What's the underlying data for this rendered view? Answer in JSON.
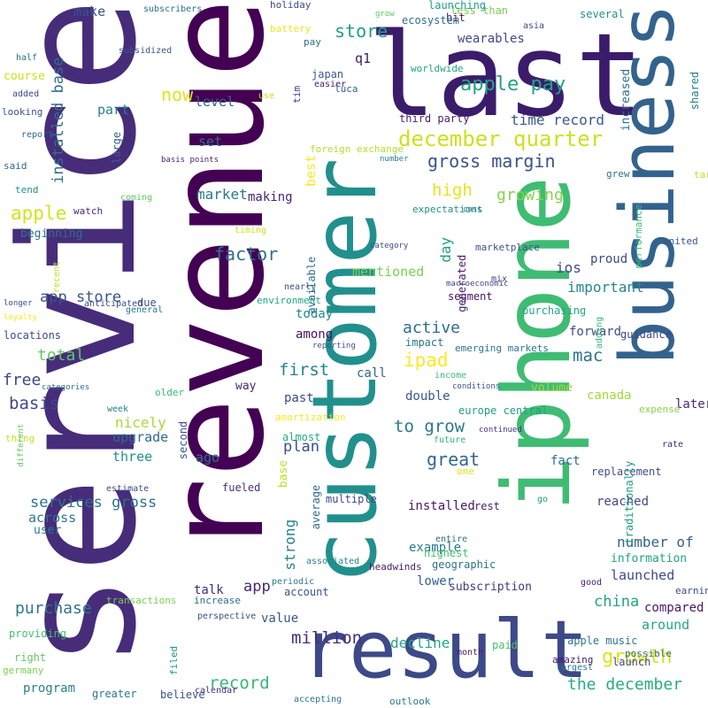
{
  "words": [
    {
      "text": "service",
      "color": "#472c7a",
      "vertical": true
    },
    {
      "text": "revenue",
      "color": "#440154",
      "vertical": true
    },
    {
      "text": "last",
      "color": "#3b1c6b",
      "vertical": false
    },
    {
      "text": "customer",
      "color": "#21908d",
      "vertical": true
    },
    {
      "text": "iphone",
      "color": "#3fbc73",
      "vertical": true
    },
    {
      "text": "business",
      "color": "#33638d",
      "vertical": true
    },
    {
      "text": "result",
      "color": "#3e4989",
      "vertical": false
    },
    {
      "text": "december quarter",
      "color": "#cde11d",
      "vertical": false
    },
    {
      "text": "gross margin",
      "color": "#3b528b",
      "vertical": false
    },
    {
      "text": "apple pay",
      "color": "#20a386",
      "vertical": false
    },
    {
      "text": "store",
      "color": "#1f9e89",
      "vertical": false
    },
    {
      "text": "wearables",
      "color": "#3e4a89",
      "vertical": false
    },
    {
      "text": "time record",
      "color": "#375a8c",
      "vertical": false
    },
    {
      "text": "installed base",
      "color": "#2e6f8e",
      "vertical": true
    },
    {
      "text": "apple",
      "color": "#d2e21b",
      "vertical": false
    },
    {
      "text": "high",
      "color": "#e7e419",
      "vertical": false
    },
    {
      "text": "growing",
      "color": "#84d44b",
      "vertical": false
    },
    {
      "text": "market",
      "color": "#2a788e",
      "vertical": false
    },
    {
      "text": "factor",
      "color": "#2d718e",
      "vertical": false
    },
    {
      "text": "day",
      "color": "#1fa088",
      "vertical": true
    },
    {
      "text": "generated",
      "color": "#481a6c",
      "vertical": true
    },
    {
      "text": "ios",
      "color": "#3e4c8a",
      "vertical": false
    },
    {
      "text": "app store",
      "color": "#3b528b",
      "vertical": false
    },
    {
      "text": "active",
      "color": "#2e6e8e",
      "vertical": false
    },
    {
      "text": "important",
      "color": "#23888e",
      "vertical": false
    },
    {
      "text": "ipad",
      "color": "#fde725",
      "vertical": false
    },
    {
      "text": "mac",
      "color": "#2c728e",
      "vertical": false
    },
    {
      "text": "total",
      "color": "#5ec962",
      "vertical": false
    },
    {
      "text": "basis",
      "color": "#3f4889",
      "vertical": false
    },
    {
      "text": "free",
      "color": "#3e4a89",
      "vertical": false
    },
    {
      "text": "first",
      "color": "#25848e",
      "vertical": false
    },
    {
      "text": "to grow",
      "color": "#2a788e",
      "vertical": false
    },
    {
      "text": "great",
      "color": "#31688e",
      "vertical": false
    },
    {
      "text": "services gross",
      "color": "#2c728e",
      "vertical": false
    },
    {
      "text": "purchase",
      "color": "#2a788e",
      "vertical": false
    },
    {
      "text": "million",
      "color": "#472d7b",
      "vertical": false
    },
    {
      "text": "growth",
      "color": "#dde318",
      "vertical": false
    },
    {
      "text": "the december",
      "color": "#25ab82",
      "vertical": false
    },
    {
      "text": "record",
      "color": "#35b779",
      "vertical": false
    },
    {
      "text": "china",
      "color": "#20a486",
      "vertical": false
    },
    {
      "text": "number of",
      "color": "#33638d",
      "vertical": false
    },
    {
      "text": "decline",
      "color": "#22a785",
      "vertical": false
    },
    {
      "text": "strong",
      "color": "#26828e",
      "vertical": true
    },
    {
      "text": "plan",
      "color": "#3d4e8a",
      "vertical": false
    },
    {
      "text": "nicely",
      "color": "#a8db34",
      "vertical": false
    },
    {
      "text": "three",
      "color": "#21918c",
      "vertical": false
    },
    {
      "text": "upgrade",
      "color": "#31688e",
      "vertical": false
    },
    {
      "text": "make",
      "color": "#3b528b",
      "vertical": false
    },
    {
      "text": "now",
      "color": "#e2e418",
      "vertical": false
    },
    {
      "text": "level",
      "color": "#33628d",
      "vertical": false
    },
    {
      "text": "set",
      "color": "#2d708e",
      "vertical": false
    },
    {
      "text": "large",
      "color": "#34618d",
      "vertical": true
    },
    {
      "text": "part",
      "color": "#26828e",
      "vertical": false
    },
    {
      "text": "best",
      "color": "#fde725",
      "vertical": true
    },
    {
      "text": "foreign exchange",
      "color": "#b5de2b",
      "vertical": false
    },
    {
      "text": "third party",
      "color": "#481c6e",
      "vertical": false
    },
    {
      "text": "q1",
      "color": "#3b1c6b",
      "vertical": false
    },
    {
      "text": "tim",
      "color": "#443983",
      "vertical": true
    },
    {
      "text": "making",
      "color": "#482374",
      "vertical": false
    },
    {
      "text": "mentioned",
      "color": "#7ad151",
      "vertical": false
    },
    {
      "text": "segment",
      "color": "#471365",
      "vertical": false
    },
    {
      "text": "purchasing",
      "color": "#22a785",
      "vertical": false
    },
    {
      "text": "forward",
      "color": "#3e4c8a",
      "vertical": false
    },
    {
      "text": "guidance",
      "color": "#414487",
      "vertical": false
    },
    {
      "text": "today",
      "color": "#238a8d",
      "vertical": false
    },
    {
      "text": "among",
      "color": "#471164",
      "vertical": false
    },
    {
      "text": "impact",
      "color": "#2b758e",
      "vertical": false
    },
    {
      "text": "emerging markets",
      "color": "#2b758e",
      "vertical": false
    },
    {
      "text": "past",
      "color": "#3e4989",
      "vertical": false
    },
    {
      "text": "double",
      "color": "#39568c",
      "vertical": false
    },
    {
      "text": "call",
      "color": "#33638d",
      "vertical": false
    },
    {
      "text": "way",
      "color": "#482878",
      "vertical": false
    },
    {
      "text": "ago",
      "color": "#2c728e",
      "vertical": false
    },
    {
      "text": "across",
      "color": "#2a768e",
      "vertical": false
    },
    {
      "text": "user",
      "color": "#287c8e",
      "vertical": false
    },
    {
      "text": "app",
      "color": "#482677",
      "vertical": false
    },
    {
      "text": "talk",
      "color": "#472c7a",
      "vertical": false
    },
    {
      "text": "value",
      "color": "#39568c",
      "vertical": false
    },
    {
      "text": "example",
      "color": "#2a788e",
      "vertical": false
    },
    {
      "text": "installed",
      "color": "#481a6c",
      "vertical": false
    },
    {
      "text": "reached",
      "color": "#3f4889",
      "vertical": false
    },
    {
      "text": "fact",
      "color": "#2d708e",
      "vertical": false
    },
    {
      "text": "replacement",
      "color": "#3e4c8a",
      "vertical": false
    },
    {
      "text": "subscription",
      "color": "#453781",
      "vertical": false
    },
    {
      "text": "lower",
      "color": "#34608d",
      "vertical": false
    },
    {
      "text": "launched",
      "color": "#3e4989",
      "vertical": false
    },
    {
      "text": "compared",
      "color": "#48186a",
      "vertical": false
    },
    {
      "text": "around",
      "color": "#22a884",
      "vertical": false
    },
    {
      "text": "launch",
      "color": "#3e4989",
      "vertical": false
    },
    {
      "text": "information",
      "color": "#20a486",
      "vertical": false
    },
    {
      "text": "apple music",
      "color": "#2a788e",
      "vertical": false
    },
    {
      "text": "program",
      "color": "#27808e",
      "vertical": false
    },
    {
      "text": "believe",
      "color": "#3b528b",
      "vertical": false
    },
    {
      "text": "greater",
      "color": "#2a788e",
      "vertical": false
    },
    {
      "text": "right",
      "color": "#5ec962",
      "vertical": false
    },
    {
      "text": "providing",
      "color": "#44bf70",
      "vertical": false
    },
    {
      "text": "transactions",
      "color": "#7ad151",
      "vertical": false
    },
    {
      "text": "increase",
      "color": "#2e6e8e",
      "vertical": false
    },
    {
      "text": "account",
      "color": "#39568c",
      "vertical": false
    },
    {
      "text": "average",
      "color": "#2f6c8e",
      "vertical": true
    },
    {
      "text": "base",
      "color": "#bddf26",
      "vertical": true
    },
    {
      "text": "available",
      "color": "#2e6e8e",
      "vertical": true
    },
    {
      "text": "multiple",
      "color": "#3f4788",
      "vertical": false
    },
    {
      "text": "geographic",
      "color": "#2c728e",
      "vertical": false
    },
    {
      "text": "highest",
      "color": "#46c06f",
      "vertical": false
    },
    {
      "text": "entire",
      "color": "#2c718e",
      "vertical": false
    },
    {
      "text": "headwinds",
      "color": "#481b6d",
      "vertical": false
    },
    {
      "text": "associated",
      "color": "#25848e",
      "vertical": false
    },
    {
      "text": "periodic",
      "color": "#2a768e",
      "vertical": false
    },
    {
      "text": "perspective",
      "color": "#3b528b",
      "vertical": false
    },
    {
      "text": "filed",
      "color": "#21918c",
      "vertical": true
    },
    {
      "text": "accepting",
      "color": "#2c728e",
      "vertical": false
    },
    {
      "text": "outlook",
      "color": "#287c8e",
      "vertical": false
    },
    {
      "text": "paid",
      "color": "#4ac16d",
      "vertical": false
    },
    {
      "text": "month",
      "color": "#481f70",
      "vertical": false
    },
    {
      "text": "amazing",
      "color": "#3b1c6b",
      "vertical": false
    },
    {
      "text": "largest",
      "color": "#2a788e",
      "vertical": false
    },
    {
      "text": "possible",
      "color": "#2c728e",
      "vertical": false
    },
    {
      "text": "earnings",
      "color": "#3e4a89",
      "vertical": false
    },
    {
      "text": "good",
      "color": "#481a6c",
      "vertical": false
    },
    {
      "text": "germany",
      "color": "#7ad151",
      "vertical": false
    },
    {
      "text": "second",
      "color": "#3b528b",
      "vertical": true
    },
    {
      "text": "calendar",
      "color": "#472d7b",
      "vertical": false
    },
    {
      "text": "estimate",
      "color": "#3e4c8a",
      "vertical": false
    },
    {
      "text": "fueled",
      "color": "#46337f",
      "vertical": false
    },
    {
      "text": "thing",
      "color": "#c2df23",
      "vertical": false
    },
    {
      "text": "different",
      "color": "#5ec962",
      "vertical": true
    },
    {
      "text": "week",
      "color": "#27808e",
      "vertical": false
    },
    {
      "text": "categories",
      "color": "#31688e",
      "vertical": false
    },
    {
      "text": "older",
      "color": "#38b977",
      "vertical": false
    },
    {
      "text": "amortization",
      "color": "#fde725",
      "vertical": false
    },
    {
      "text": "almost",
      "color": "#25ab82",
      "vertical": false
    },
    {
      "text": "europe central",
      "color": "#1f9e89",
      "vertical": false
    },
    {
      "text": "conditions",
      "color": "#3b528b",
      "vertical": false
    },
    {
      "text": "income",
      "color": "#3aba76",
      "vertical": false
    },
    {
      "text": "volume",
      "color": "#a0da39",
      "vertical": false
    },
    {
      "text": "future",
      "color": "#34b679",
      "vertical": false
    },
    {
      "text": "continued",
      "color": "#46337f",
      "vertical": false
    },
    {
      "text": "one",
      "color": "#e5e419",
      "vertical": false
    },
    {
      "text": "rest",
      "color": "#482071",
      "vertical": false
    },
    {
      "text": "go",
      "color": "#1e9c89",
      "vertical": false
    },
    {
      "text": "expense",
      "color": "#84d44b",
      "vertical": false
    },
    {
      "text": "later",
      "color": "#472a7a",
      "vertical": false
    },
    {
      "text": "rate",
      "color": "#482878",
      "vertical": false
    },
    {
      "text": "canada",
      "color": "#a2da37",
      "vertical": false
    },
    {
      "text": "traditionally",
      "color": "#1f9e89",
      "vertical": true
    },
    {
      "text": "adding",
      "color": "#3aba76",
      "vertical": true
    },
    {
      "text": "united",
      "color": "#38598c",
      "vertical": false
    },
    {
      "text": "proud",
      "color": "#3f4889",
      "vertical": false
    },
    {
      "text": "grew",
      "color": "#2d718e",
      "vertical": false
    },
    {
      "text": "performance",
      "color": "#3aba76",
      "vertical": true
    },
    {
      "text": "target",
      "color": "#bade28",
      "vertical": false
    },
    {
      "text": "shared",
      "color": "#26818e",
      "vertical": true
    },
    {
      "text": "increased",
      "color": "#2e6d8e",
      "vertical": true
    },
    {
      "text": "several",
      "color": "#21918c",
      "vertical": false
    },
    {
      "text": "less than",
      "color": "#7ad151",
      "vertical": false
    },
    {
      "text": "bit",
      "color": "#481a6c",
      "vertical": false
    },
    {
      "text": "launching",
      "color": "#1f9e89",
      "vertical": false
    },
    {
      "text": "ecosystem",
      "color": "#2e6f8e",
      "vertical": false
    },
    {
      "text": "grow",
      "color": "#5ec962",
      "vertical": false
    },
    {
      "text": "asia",
      "color": "#3e4c8a",
      "vertical": false
    },
    {
      "text": "worldwide",
      "color": "#20a386",
      "vertical": false
    },
    {
      "text": "luca",
      "color": "#33638d",
      "vertical": false
    },
    {
      "text": "japan",
      "color": "#38598c",
      "vertical": false
    },
    {
      "text": "easier",
      "color": "#481a6c",
      "vertical": false
    },
    {
      "text": "pay",
      "color": "#2d708e",
      "vertical": false
    },
    {
      "text": "battery",
      "color": "#f1e51d",
      "vertical": false
    },
    {
      "text": "holiday",
      "color": "#3e4a89",
      "vertical": false
    },
    {
      "text": "subscribers",
      "color": "#2e6e8e",
      "vertical": false
    },
    {
      "text": "subsidized",
      "color": "#3b528b",
      "vertical": false
    },
    {
      "text": "half",
      "color": "#2c728e",
      "vertical": false
    },
    {
      "text": "course",
      "color": "#cde11d",
      "vertical": false
    },
    {
      "text": "added",
      "color": "#3e4989",
      "vertical": false
    },
    {
      "text": "looking",
      "color": "#3b528b",
      "vertical": false
    },
    {
      "text": "report",
      "color": "#31688e",
      "vertical": false
    },
    {
      "text": "said",
      "color": "#33638d",
      "vertical": false
    },
    {
      "text": "tend",
      "color": "#21918c",
      "vertical": false
    },
    {
      "text": "watch",
      "color": "#482878",
      "vertical": false
    },
    {
      "text": "beginning",
      "color": "#2d708e",
      "vertical": false
    },
    {
      "text": "basis points",
      "color": "#481f70",
      "vertical": false
    },
    {
      "text": "coming",
      "color": "#5ec962",
      "vertical": false
    },
    {
      "text": "use",
      "color": "#c2df23",
      "vertical": false
    },
    {
      "text": "timing",
      "color": "#cde11d",
      "vertical": false
    },
    {
      "text": "expectations",
      "color": "#21918c",
      "vertical": false
    },
    {
      "text": "cost",
      "color": "#27808e",
      "vertical": false
    },
    {
      "text": "number",
      "color": "#287d8e",
      "vertical": false
    },
    {
      "text": "category",
      "color": "#3e4989",
      "vertical": false
    },
    {
      "text": "marketplace",
      "color": "#3b528b",
      "vertical": false
    },
    {
      "text": "mix",
      "color": "#414487",
      "vertical": false
    },
    {
      "text": "macroeconomic",
      "color": "#3e4989",
      "vertical": false
    },
    {
      "text": "anticipated",
      "color": "#3e4989",
      "vertical": false
    },
    {
      "text": "recent",
      "color": "#bddf26",
      "vertical": true
    },
    {
      "text": "longer",
      "color": "#3e4989",
      "vertical": false
    },
    {
      "text": "loyalty",
      "color": "#fde725",
      "vertical": false
    },
    {
      "text": "locations",
      "color": "#3e4989",
      "vertical": false
    },
    {
      "text": "due",
      "color": "#3b528b",
      "vertical": false
    },
    {
      "text": "general",
      "color": "#2a788e",
      "vertical": false
    },
    {
      "text": "environment",
      "color": "#22a785",
      "vertical": false
    },
    {
      "text": "nearly",
      "color": "#3b528b",
      "vertical": false
    },
    {
      "text": "reporting",
      "color": "#3b528b",
      "vertical": false
    }
  ]
}
